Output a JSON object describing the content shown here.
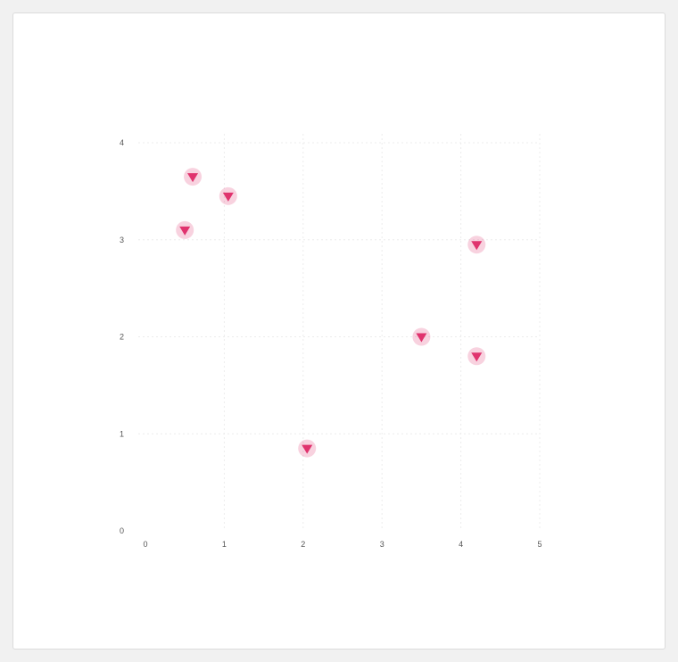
{
  "chart_data": {
    "type": "scatter",
    "title": "",
    "subtitle": "",
    "xlabel": "",
    "ylabel": "",
    "xlim": [
      0,
      5
    ],
    "ylim": [
      0,
      4
    ],
    "xticks": [
      0,
      1,
      2,
      3,
      4,
      5
    ],
    "yticks": [
      0,
      1,
      2,
      3,
      4
    ],
    "grid": true,
    "marker_color": "#e0336e",
    "points": [
      {
        "label": "",
        "x": 0.6,
        "y": 3.65
      },
      {
        "label": "",
        "x": 1.05,
        "y": 3.45
      },
      {
        "label": "",
        "x": 0.5,
        "y": 3.1
      },
      {
        "label": "",
        "x": 3.5,
        "y": 2.0
      },
      {
        "label": "",
        "x": 4.2,
        "y": 2.95
      },
      {
        "label": "",
        "x": 4.2,
        "y": 1.8
      },
      {
        "label": "",
        "x": 2.05,
        "y": 0.85
      }
    ]
  }
}
